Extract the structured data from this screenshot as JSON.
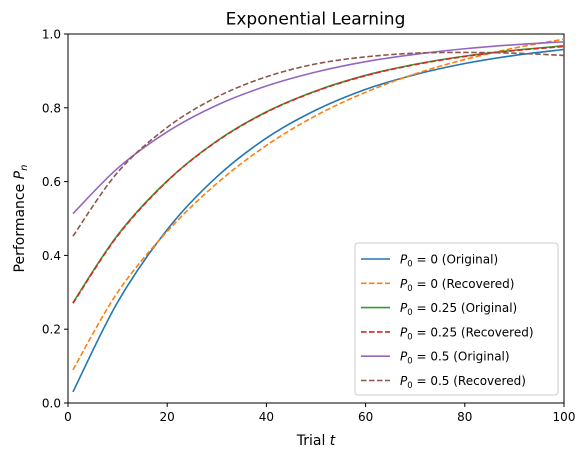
{
  "chart_data": {
    "type": "line",
    "title": "Exponential Learning",
    "xlabel": {
      "prefix": "Trial ",
      "var": "t"
    },
    "ylabel": {
      "prefix": "Performance ",
      "var": "P",
      "sub": "n"
    },
    "xlim": [
      0,
      100
    ],
    "ylim": [
      0.0,
      1.0
    ],
    "xticks": [
      0,
      20,
      40,
      60,
      80,
      100
    ],
    "xtick_labels": [
      "0",
      "20",
      "40",
      "60",
      "80",
      "100"
    ],
    "yticks": [
      0.0,
      0.2,
      0.4,
      0.6,
      0.8,
      1.0
    ],
    "ytick_labels": [
      "0.0",
      "0.2",
      "0.4",
      "0.6",
      "0.8",
      "1.0"
    ],
    "grid": false,
    "legend_position": "lower-right",
    "x": [
      1,
      10,
      20,
      30,
      40,
      50,
      60,
      70,
      80,
      90,
      100
    ],
    "series": [
      {
        "name": "P0 = 0 (Original)",
        "legend": {
          "p0": "0",
          "suffix": " (Original)"
        },
        "color": "#1f77b4",
        "dash": "solid",
        "values": [
          0.03,
          0.273,
          0.47,
          0.613,
          0.718,
          0.794,
          0.85,
          0.89,
          0.92,
          0.942,
          0.958
        ]
      },
      {
        "name": "P0 = 0 (Recovered)",
        "legend": {
          "p0": "0",
          "suffix": " (Recovered)"
        },
        "color": "#ff7f0e",
        "dash": "dashed",
        "values": [
          0.09,
          0.3,
          0.465,
          0.595,
          0.698,
          0.779,
          0.842,
          0.892,
          0.931,
          0.962,
          0.986
        ]
      },
      {
        "name": "P0 = 0.25 (Original)",
        "legend": {
          "p0": "0.25",
          "suffix": " (Original)"
        },
        "color": "#2ca02c",
        "dash": "solid",
        "values": [
          0.272,
          0.455,
          0.602,
          0.71,
          0.789,
          0.846,
          0.888,
          0.918,
          0.94,
          0.956,
          0.968
        ]
      },
      {
        "name": "P0 = 0.25 (Recovered)",
        "legend": {
          "p0": "0.25",
          "suffix": " (Recovered)"
        },
        "color": "#d62728",
        "dash": "dashed",
        "values": [
          0.27,
          0.453,
          0.601,
          0.709,
          0.788,
          0.845,
          0.887,
          0.917,
          0.939,
          0.955,
          0.966
        ]
      },
      {
        "name": "P0 = 0.5 (Original)",
        "legend": {
          "p0": "0.5",
          "suffix": " (Original)"
        },
        "color": "#9467bd",
        "dash": "solid",
        "values": [
          0.513,
          0.636,
          0.735,
          0.807,
          0.859,
          0.897,
          0.925,
          0.945,
          0.96,
          0.971,
          0.979
        ]
      },
      {
        "name": "P0 = 0.5 (Recovered)",
        "legend": {
          "p0": "0.5",
          "suffix": " (Recovered)"
        },
        "color": "#8c564b",
        "dash": "dashed",
        "values": [
          0.452,
          0.625,
          0.747,
          0.829,
          0.884,
          0.919,
          0.938,
          0.948,
          0.95,
          0.948,
          0.942
        ]
      }
    ]
  }
}
